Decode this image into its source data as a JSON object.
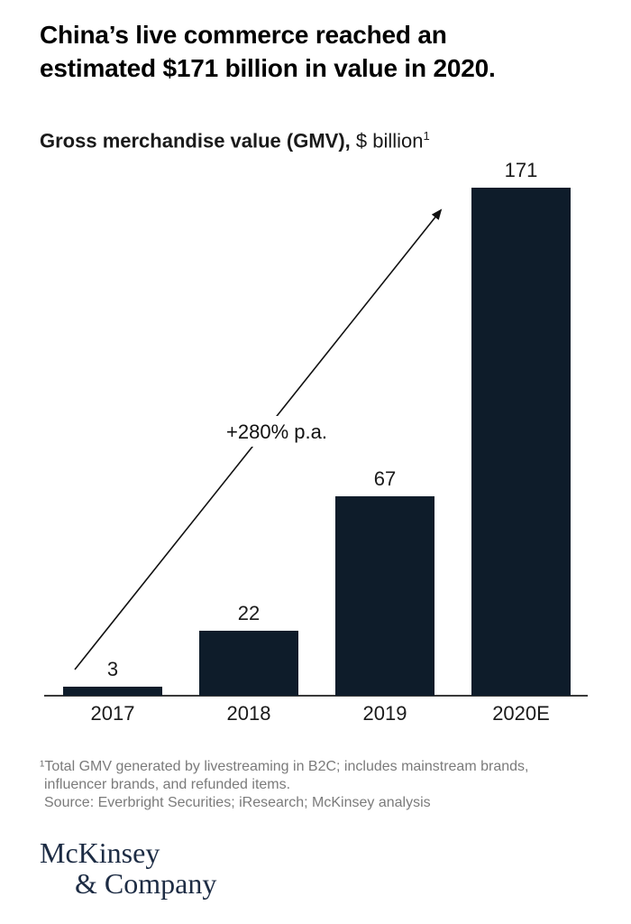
{
  "header": {
    "title_line1": "China’s live commerce reached an",
    "title_line2": "estimated $171 billion in value in 2020."
  },
  "subtitle": {
    "bold": "Gross merchandise value (GMV),",
    "regular": " $ billion",
    "superscript": "1"
  },
  "chart_data": {
    "type": "bar",
    "categories": [
      "2017",
      "2018",
      "2019",
      "2020E"
    ],
    "values": [
      3,
      22,
      67,
      171
    ],
    "title": "Gross merchandise value (GMV), $ billion",
    "xlabel": "",
    "ylabel": "$ billion",
    "ylim": [
      0,
      180
    ],
    "grid": false,
    "legend": false,
    "annotation": "+280% p.a.",
    "bar_color": "#0e1c2a",
    "label_color": "#1a1a1a",
    "axis_color": "#3a3a3a",
    "arrow_color": "#111111"
  },
  "footnote": {
    "line1": "¹Total GMV generated by livestreaming in B2C; includes mainstream brands,",
    "line2": "influencer brands, and refunded items.",
    "line3": "Source: Everbright Securities; iResearch; McKinsey analysis"
  },
  "logo": {
    "line1": "McKinsey",
    "line2": "& Company"
  }
}
